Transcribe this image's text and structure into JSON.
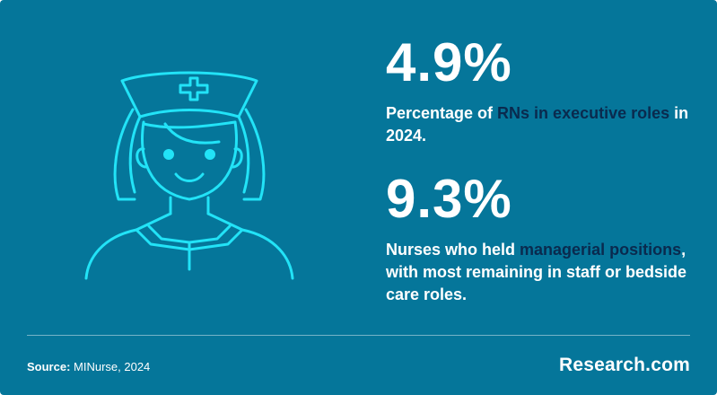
{
  "illustration": {
    "icon": "nurse-icon",
    "stroke_color": "#22e3f7"
  },
  "stats": [
    {
      "value": "4.9%",
      "desc_before": "Percentage of ",
      "desc_highlight": "RNs in executive roles",
      "desc_after": " in 2024."
    },
    {
      "value": "9.3%",
      "desc_before": "Nurses who held ",
      "desc_highlight": "managerial positions",
      "desc_after": ", with most remaining in staff or bedside care roles."
    }
  ],
  "footer": {
    "source_label": "Source:",
    "source_text": " MINurse, 2024",
    "brand": "Research.com"
  },
  "colors": {
    "background": "#05769a",
    "highlight": "#0a2a4e",
    "icon_stroke": "#22e3f7"
  }
}
